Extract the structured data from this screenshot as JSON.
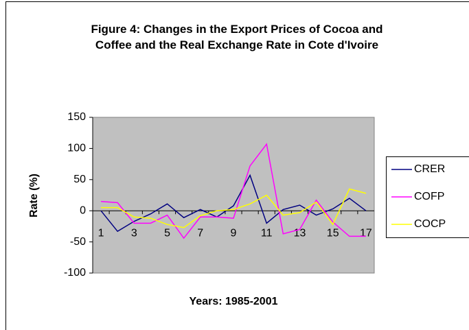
{
  "chart_data": {
    "type": "line",
    "title": "Figure 4: Changes in the Export Prices of Cocoa and Coffee and the Real Exchange Rate in Cote d'Ivoire",
    "x_label": "Years: 1985-2001",
    "y_label": "Rate (%)",
    "categories": [
      1,
      null,
      3,
      null,
      5,
      null,
      7,
      null,
      9,
      null,
      11,
      null,
      13,
      null,
      15,
      null,
      17
    ],
    "series": [
      {
        "name": "CRER",
        "color": "#000080",
        "values": [
          0,
          -33,
          -17,
          -5,
          11,
          -11,
          2,
          -10,
          8,
          57,
          -20,
          2,
          9,
          -7,
          3,
          20,
          0
        ]
      },
      {
        "name": "COFP",
        "color": "#ff00ff",
        "values": [
          15,
          13,
          -20,
          -20,
          -7,
          -44,
          -10,
          -10,
          -12,
          72,
          107,
          -37,
          -30,
          17,
          -18,
          -41,
          -41
        ]
      },
      {
        "name": "COCP",
        "color": "#ffff00",
        "values": [
          5,
          5,
          -10,
          -12,
          -22,
          -27,
          -8,
          0,
          2,
          11,
          25,
          -7,
          -3,
          14,
          -22,
          35,
          28
        ]
      }
    ],
    "ylim": [
      -100,
      150
    ],
    "yticks": [
      -100,
      -50,
      0,
      50,
      100,
      150
    ],
    "grid": false,
    "legend": "right"
  }
}
